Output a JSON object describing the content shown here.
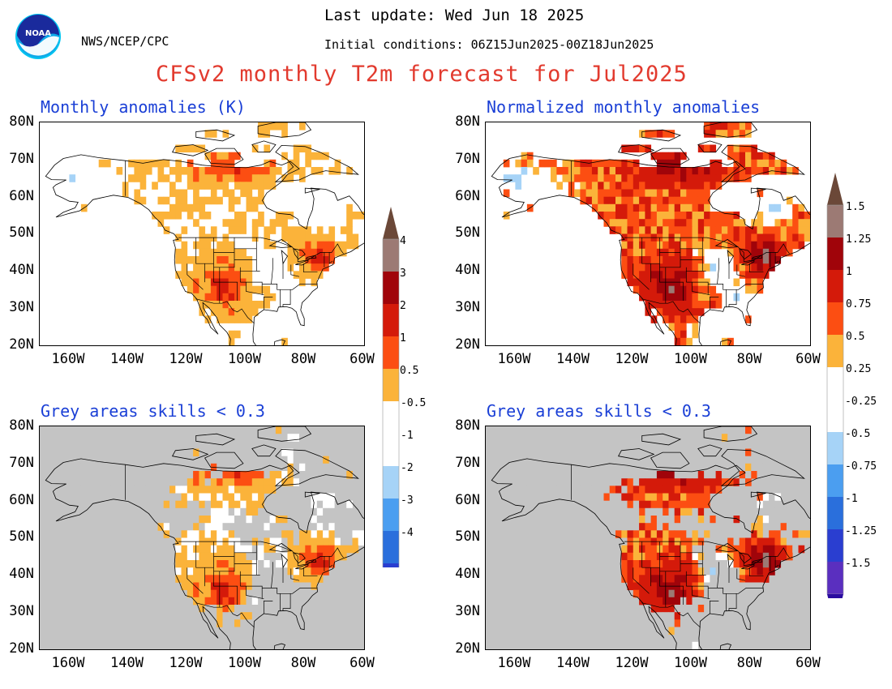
{
  "header": {
    "org_label": "NWS/NCEP/CPC",
    "last_update": "Last update: Wed Jun 18 2025",
    "initial_conditions": "Initial conditions: 06Z15Jun2025-00Z18Jun2025",
    "main_title": "CFSv2 monthly T2m forecast for Jul2025",
    "logo_text": "NOAA"
  },
  "panels": {
    "top_left_title": "Monthly anomalies (K)",
    "top_right_title": "Normalized monthly anomalies",
    "bottom_left_title": "Grey areas skills < 0.3",
    "bottom_right_title": "Grey areas skills < 0.3"
  },
  "axes": {
    "lat_labels": [
      "80N",
      "70N",
      "60N",
      "50N",
      "40N",
      "30N",
      "20N"
    ],
    "lon_labels": [
      "160W",
      "140W",
      "120W",
      "100W",
      "80W",
      "60W"
    ]
  },
  "colorbar_left": {
    "labels": [
      "4",
      "3",
      "2",
      "1",
      "0.5",
      "-0.5",
      "-1",
      "-2",
      "-3",
      "-4"
    ]
  },
  "colorbar_right": {
    "labels": [
      "1.5",
      "1.25",
      "1",
      "0.75",
      "0.5",
      "0.25",
      "-0.25",
      "-0.5",
      "-0.75",
      "-1",
      "-1.25",
      "-1.5"
    ]
  },
  "colors": {
    "title_red": "#e23a2e",
    "panel_blue": "#1a3fd6",
    "skill_grey": "#c4c4c4",
    "pos1": "#fbb33a",
    "pos2": "#fc4e12",
    "pos3": "#d41a0a",
    "pos4": "#a0040a",
    "pos5": "#9c7a74",
    "pos6": "#6b4838",
    "neg1": "#a6d3f7",
    "neg2": "#4b9ef0",
    "neg3": "#2a6fdc",
    "neg4": "#2a3ed0",
    "neg5": "#5a2fbf",
    "neg6": "#2a0ca0"
  }
}
